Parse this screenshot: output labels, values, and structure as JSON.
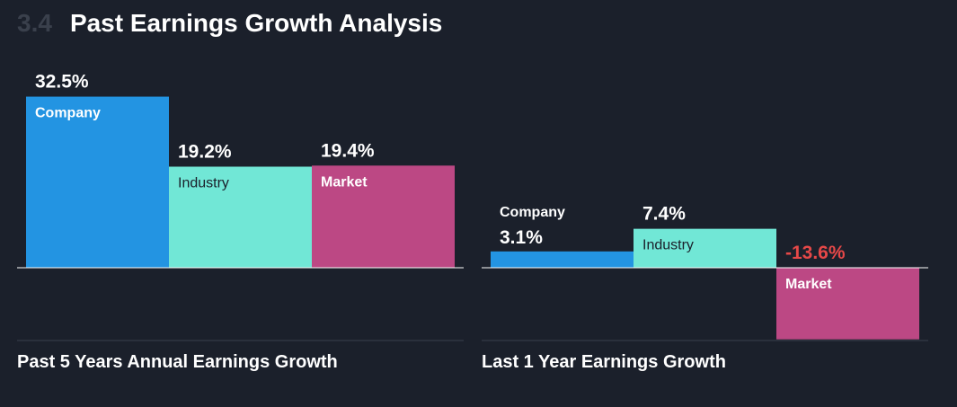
{
  "header": {
    "section_number": "3.4",
    "title": "Past Earnings Growth Analysis"
  },
  "colors": {
    "background": "#1b202b",
    "company": "#2394e2",
    "industry": "#71e7d6",
    "market": "#bc4884",
    "positive_value": "#ffffff",
    "negative_value": "#e64848",
    "section_number": "#3a404c"
  },
  "chart_data": [
    {
      "type": "bar",
      "title": "Past 5 Years Annual Earnings Growth",
      "categories": [
        "Company",
        "Industry",
        "Market"
      ],
      "values": [
        32.5,
        19.2,
        19.4
      ],
      "value_labels": [
        "32.5%",
        "19.2%",
        "19.4%"
      ],
      "unit": "%",
      "ylim": [
        -14,
        33
      ],
      "grid": false,
      "legend": "none"
    },
    {
      "type": "bar",
      "title": "Last 1 Year Earnings Growth",
      "categories": [
        "Company",
        "Industry",
        "Market"
      ],
      "values": [
        3.1,
        7.4,
        -13.6
      ],
      "value_labels": [
        "3.1%",
        "7.4%",
        "-13.6%"
      ],
      "unit": "%",
      "ylim": [
        -14,
        33
      ],
      "grid": false,
      "legend": "none"
    }
  ]
}
